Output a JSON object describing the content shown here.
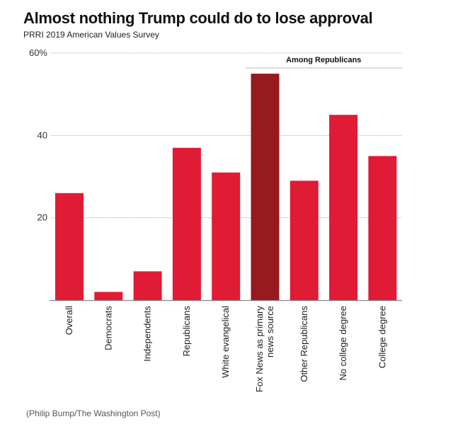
{
  "title": "Almost nothing Trump could do to lose approval",
  "subtitle": "PRRI 2019 American Values Survey",
  "credit": "(Philip Bump/The Washington Post)",
  "colors": {
    "bar": "#e01b35",
    "highlight": "#971a1f",
    "grid": "#aaaaaa",
    "axis": "#888888"
  },
  "chart_data": {
    "type": "bar",
    "title": "Almost nothing Trump could do to lose approval",
    "subtitle": "PRRI 2019 American Values Survey",
    "xlabel": "",
    "ylabel": "",
    "ylim": [
      0,
      60
    ],
    "yticks": [
      20,
      40,
      60
    ],
    "ytick_labels": [
      "20",
      "40",
      "60%"
    ],
    "grid": true,
    "categories": [
      [
        "Overall"
      ],
      [
        "Democrats"
      ],
      [
        "Independents"
      ],
      [
        "Republicans"
      ],
      [
        "White evangelical"
      ],
      [
        "Fox News as primary",
        "news source"
      ],
      [
        "Other Republicans"
      ],
      [
        "No college degree"
      ],
      [
        "College degree"
      ]
    ],
    "values": [
      26,
      2,
      7,
      37,
      31,
      55,
      29,
      45,
      35
    ],
    "highlight_index": 5,
    "annotation": {
      "label": "Among Republicans",
      "from_index": 5,
      "to_index": 8
    }
  }
}
